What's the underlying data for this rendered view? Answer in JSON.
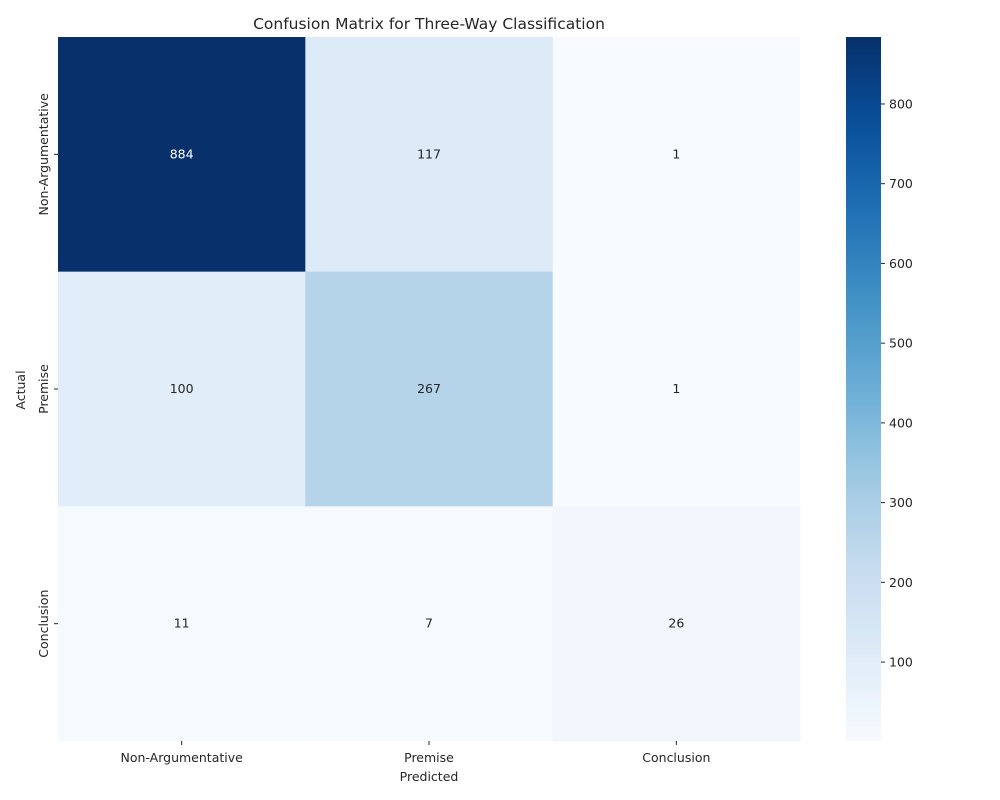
{
  "chart_data": {
    "type": "heatmap",
    "title": "Confusion Matrix for Three-Way Classification",
    "xlabel": "Predicted",
    "ylabel": "Actual",
    "x_categories": [
      "Non-Argumentative",
      "Premise",
      "Conclusion"
    ],
    "y_categories": [
      "Non-Argumentative",
      "Premise",
      "Conclusion"
    ],
    "matrix": [
      [
        884,
        117,
        1
      ],
      [
        100,
        267,
        1
      ],
      [
        11,
        7,
        26
      ]
    ],
    "colormap": "Blues",
    "colorbar": {
      "min": 1,
      "max": 884,
      "ticks": [
        100,
        200,
        300,
        400,
        500,
        600,
        700,
        800
      ]
    },
    "colors": {
      "low": "#f7fbff",
      "high": "#08306b"
    }
  }
}
